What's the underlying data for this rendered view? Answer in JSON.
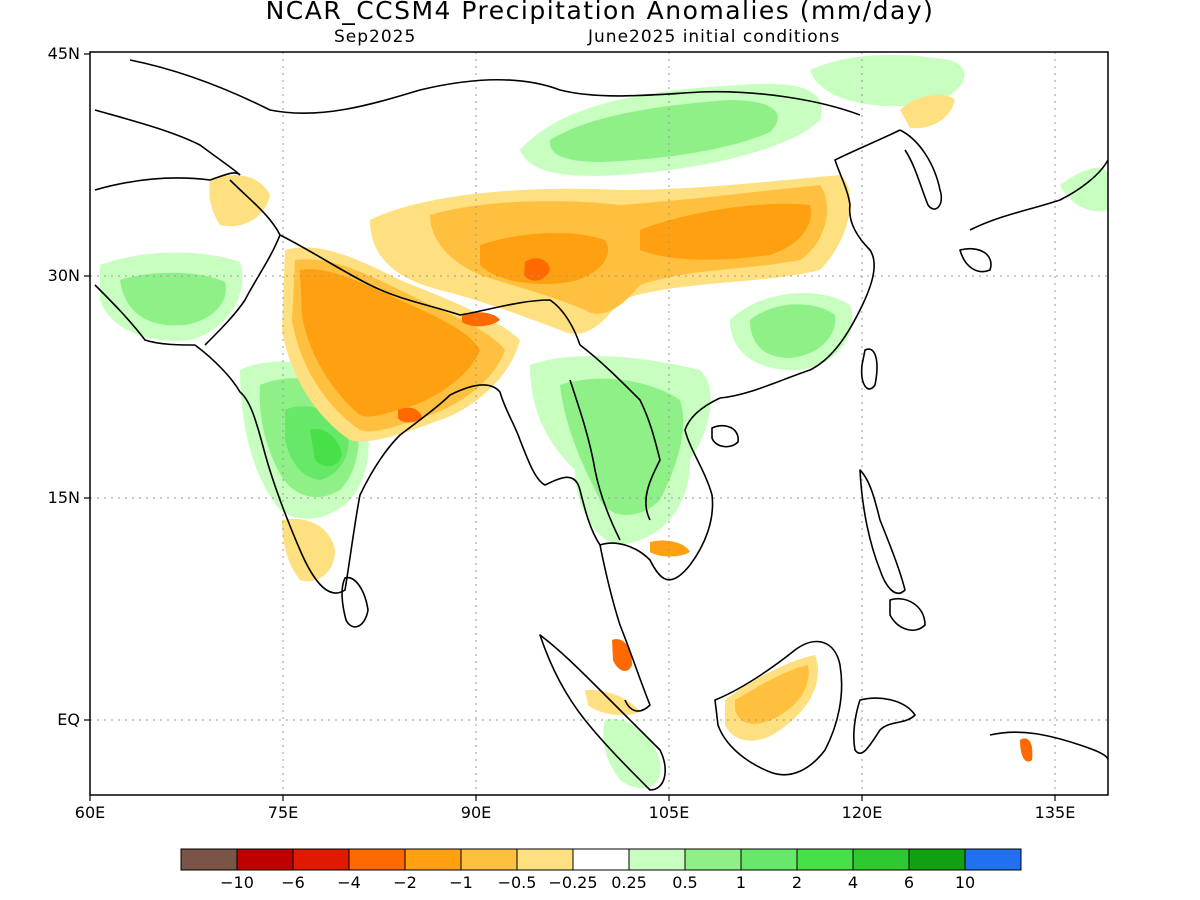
{
  "title": "NCAR_CCSM4 Precipitation Anomalies (mm/day)",
  "subtitle_left": "Sep2025",
  "subtitle_right": "June2025 initial conditions",
  "lat_labels": [
    "45N",
    "30N",
    "15N",
    "EQ"
  ],
  "lon_labels": [
    "60E",
    "75E",
    "90E",
    "105E",
    "120E",
    "135E"
  ],
  "colorbar": {
    "labels": [
      "-10",
      "-6",
      "-4",
      "-2",
      "-1",
      "-0.5",
      "-0.25",
      "0.25",
      "0.5",
      "1",
      "2",
      "4",
      "6",
      "10"
    ],
    "colors": [
      "#7a5447",
      "#c00000",
      "#e01a00",
      "#ff6a00",
      "#ffa010",
      "#ffc040",
      "#ffe080",
      "#ffffff",
      "#c8ffc0",
      "#90f088",
      "#68e868",
      "#48e048",
      "#30c830",
      "#10a010",
      "#2070f0"
    ]
  },
  "colors": {
    "dry_light": "#ffe080",
    "dry_mid": "#ffc040",
    "dry_strong": "#ffa010",
    "dry_heavy": "#ff6a00",
    "wet_light": "#c8ffc0",
    "wet_mid": "#90f088",
    "wet_strong": "#68e868",
    "wet_heavy": "#48e048"
  }
}
